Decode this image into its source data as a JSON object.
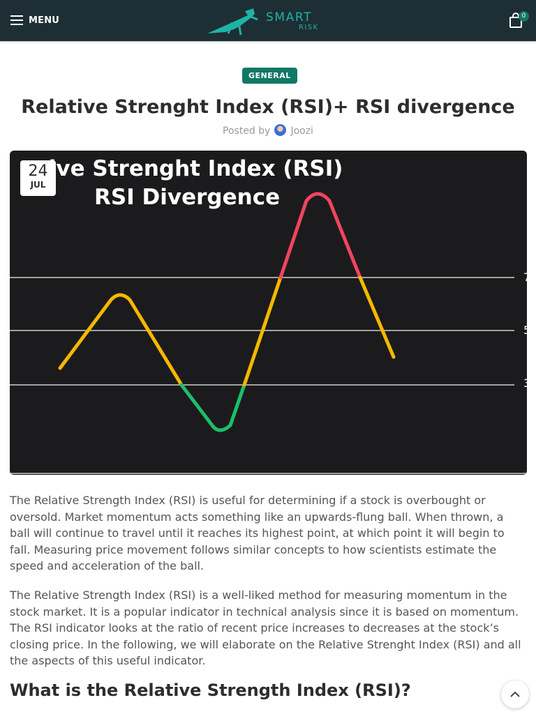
{
  "header": {
    "menu_label": "MENU",
    "logo_line1": "SMART",
    "logo_line2": "RISK",
    "cart_count": "0",
    "icons": [
      "menu-icon",
      "logo-icon",
      "shopping-bag-icon"
    ]
  },
  "post": {
    "category": "GENERAL",
    "title": "Relative Strenght Index (RSI)+ RSI divergence",
    "posted_by_label": "Posted by",
    "author": "Joozi",
    "date_day": "24",
    "date_month": "JUL"
  },
  "hero": {
    "title_line1": "ative Strenght Index (RSI)",
    "title_line2": "RSI Divergence",
    "level_labels": [
      "7",
      "5",
      "3"
    ]
  },
  "content": {
    "paragraph1": "The Relative Strength Index (RSI) is useful for determining if a stock is overbought or oversold. Market momentum acts something like an upwards-flung ball. When thrown, a ball will continue to travel until it reaches its highest point, at which point it will begin to fall. Measuring price movement follows similar concepts to how scientists estimate the speed and acceleration of the ball.",
    "paragraph2": "The Relative Strength Index (RSI) is a well-liked method for measuring momentum in the stock market. It is a popular indicator in technical analysis since it is based on momentum. The RSI indicator looks at the ratio of recent price increases to decreases at the stock’s closing price. In the following, we will elaborate on the Relative Strenght Index (RSI) and all the aspects of this useful indicator.",
    "heading": "What is the Relative Strength Index (RSI)?"
  },
  "colors": {
    "header_bg": "#1d2f34",
    "accent": "#117866",
    "logo": "#1fb3a6",
    "line_yellow": "#f5b800",
    "line_red": "#f0445e",
    "line_green": "#1bbf6a"
  }
}
